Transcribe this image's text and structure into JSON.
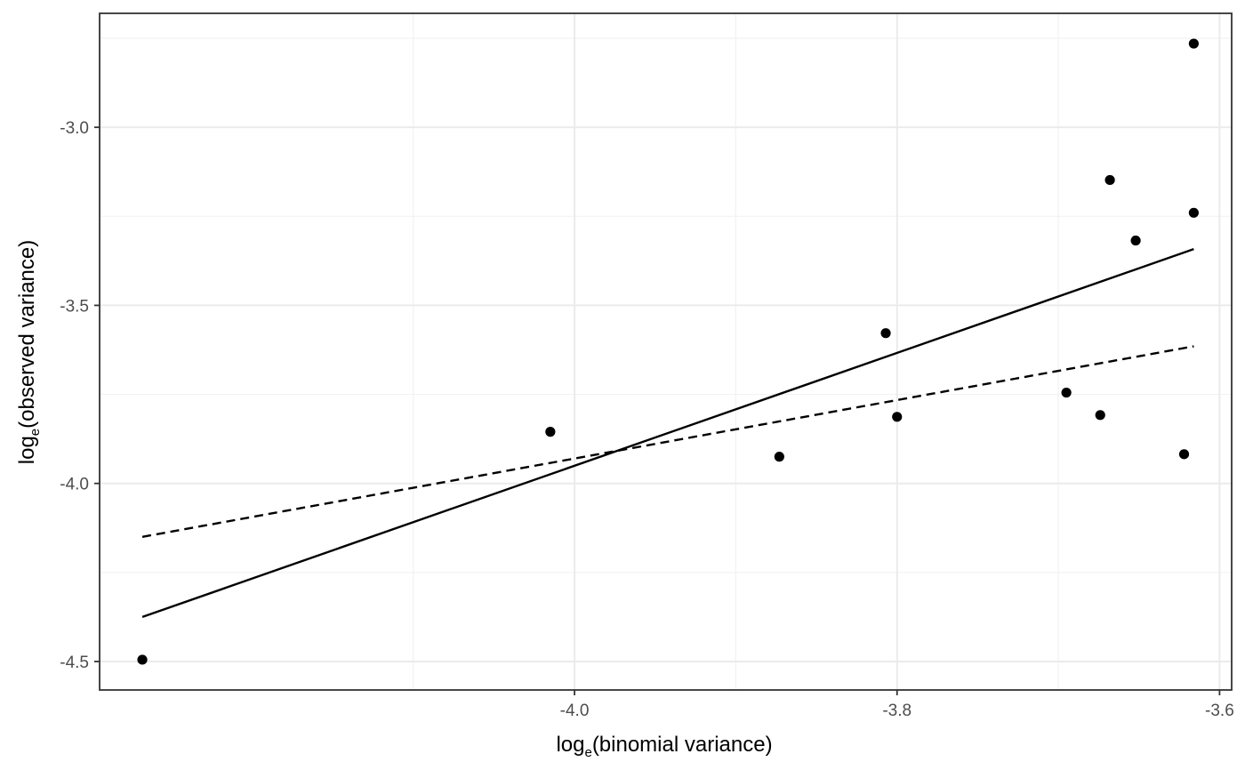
{
  "chart_data": {
    "type": "scatter",
    "title": "",
    "xlabel": {
      "prefix": "log",
      "subscript": "e",
      "suffix": "(binomial variance)"
    },
    "ylabel": {
      "prefix": "log",
      "subscript": "e",
      "suffix": "(observed variance)"
    },
    "xlim": [
      -4.2945,
      -3.5925
    ],
    "ylim": [
      -4.58,
      -2.68
    ],
    "x_ticks": [
      -4.0,
      -3.8,
      -3.6
    ],
    "x_tick_labels": [
      "-4.0",
      "-3.8",
      "-3.6"
    ],
    "y_ticks": [
      -3.0,
      -3.5,
      -4.0,
      -4.5
    ],
    "y_tick_labels": [
      "-3.0",
      "-3.5",
      "-4.0",
      "-4.5"
    ],
    "x_minor_ticks": [
      -4.1,
      -3.9,
      -3.7
    ],
    "y_minor_ticks": [
      -2.75,
      -3.25,
      -3.75,
      -4.25
    ],
    "grid": true,
    "points": [
      {
        "x": -4.268,
        "y": -4.495
      },
      {
        "x": -4.015,
        "y": -3.855
      },
      {
        "x": -3.873,
        "y": -3.925
      },
      {
        "x": -3.807,
        "y": -3.578
      },
      {
        "x": -3.8,
        "y": -3.813
      },
      {
        "x": -3.695,
        "y": -3.745
      },
      {
        "x": -3.674,
        "y": -3.808
      },
      {
        "x": -3.668,
        "y": -3.148
      },
      {
        "x": -3.652,
        "y": -3.318
      },
      {
        "x": -3.622,
        "y": -3.918
      },
      {
        "x": -3.616,
        "y": -2.765
      },
      {
        "x": -3.616,
        "y": -3.24
      }
    ],
    "lines": [
      {
        "name": "solid fit",
        "style": "solid",
        "x": [
          -4.268,
          -3.616
        ],
        "y": [
          -4.375,
          -3.342
        ]
      },
      {
        "name": "dashed fit",
        "style": "dashed",
        "x": [
          -4.268,
          -3.616
        ],
        "y": [
          -4.15,
          -3.615
        ]
      }
    ],
    "colors": {
      "points": "#000000",
      "lines": "#000000",
      "panel_border": "#333333",
      "background": "#ffffff"
    }
  }
}
